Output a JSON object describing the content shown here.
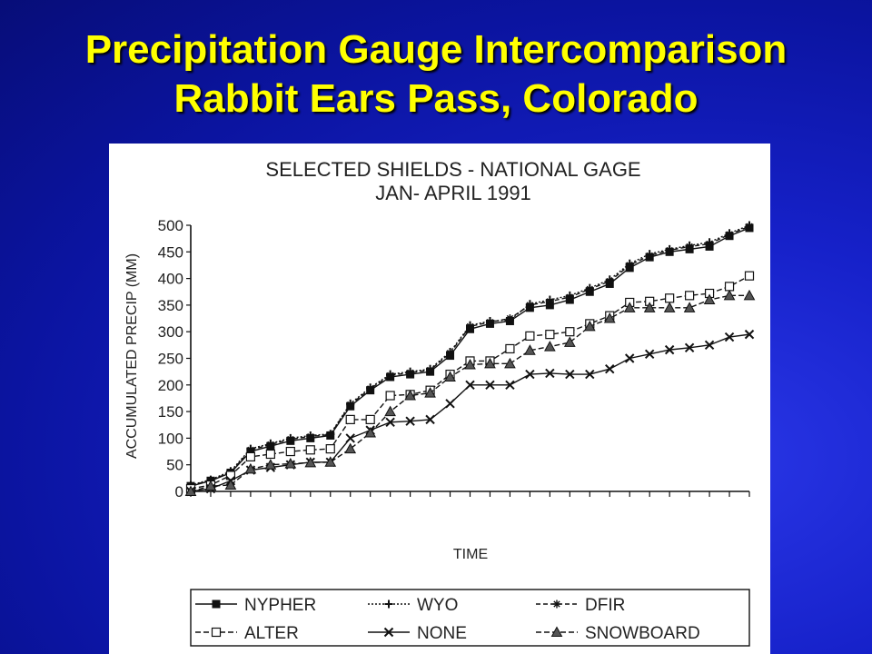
{
  "slide": {
    "title_line1": "Precipitation Gauge Intercomparison",
    "title_line2": "Rabbit Ears Pass, Colorado"
  },
  "chart_data": {
    "type": "line",
    "title": "SELECTED SHIELDS - NATIONAL GAGE",
    "subtitle": "JAN- APRIL 1991",
    "xlabel": "TIME",
    "ylabel": "ACCUMULATED PRECIP (MM)",
    "ylim": [
      0,
      500
    ],
    "yticks": [
      0,
      50,
      100,
      150,
      200,
      250,
      300,
      350,
      400,
      450,
      500
    ],
    "x": [
      0,
      1,
      2,
      3,
      4,
      5,
      6,
      7,
      8,
      9,
      10,
      11,
      12,
      13,
      14,
      15,
      16,
      17,
      18,
      19,
      20,
      21,
      22,
      23,
      24,
      25,
      26,
      27,
      28
    ],
    "grid": false,
    "legend_position": "bottom",
    "series": [
      {
        "name": "NYPHER",
        "marker": "filled-square",
        "color": "#111111",
        "values": [
          10,
          20,
          35,
          75,
          85,
          95,
          100,
          105,
          160,
          190,
          215,
          220,
          225,
          255,
          305,
          315,
          320,
          345,
          350,
          360,
          375,
          390,
          420,
          440,
          450,
          455,
          460,
          480,
          495
        ]
      },
      {
        "name": "WYO",
        "marker": "plus",
        "color": "#111111",
        "values": [
          12,
          22,
          38,
          80,
          90,
          100,
          105,
          108,
          165,
          195,
          220,
          225,
          230,
          262,
          312,
          320,
          322,
          352,
          360,
          368,
          382,
          398,
          428,
          446,
          455,
          462,
          468,
          485,
          500
        ]
      },
      {
        "name": "DFIR",
        "marker": "asterisk",
        "color": "#111111",
        "values": [
          11,
          21,
          36,
          78,
          88,
          98,
          103,
          107,
          163,
          193,
          218,
          223,
          228,
          260,
          310,
          318,
          325,
          350,
          357,
          365,
          380,
          395,
          425,
          443,
          453,
          460,
          465,
          483,
          498
        ]
      },
      {
        "name": "ALTER",
        "marker": "open-square",
        "color": "#111111",
        "values": [
          5,
          12,
          30,
          65,
          70,
          75,
          78,
          80,
          135,
          135,
          180,
          182,
          190,
          220,
          245,
          245,
          268,
          292,
          295,
          300,
          315,
          330,
          355,
          357,
          363,
          368,
          372,
          385,
          405
        ]
      },
      {
        "name": "NONE",
        "marker": "x",
        "color": "#111111",
        "values": [
          0,
          5,
          20,
          40,
          45,
          50,
          55,
          55,
          100,
          115,
          130,
          132,
          135,
          165,
          200,
          200,
          200,
          220,
          222,
          220,
          220,
          230,
          250,
          258,
          266,
          270,
          275,
          290,
          295
        ]
      },
      {
        "name": "SNOWBOARD",
        "marker": "filled-triangle",
        "color": "#111111",
        "values": [
          0,
          10,
          12,
          42,
          50,
          52,
          54,
          55,
          80,
          110,
          150,
          180,
          185,
          215,
          238,
          240,
          240,
          265,
          272,
          280,
          310,
          325,
          345,
          345,
          345,
          345,
          360,
          368,
          368
        ]
      }
    ]
  }
}
